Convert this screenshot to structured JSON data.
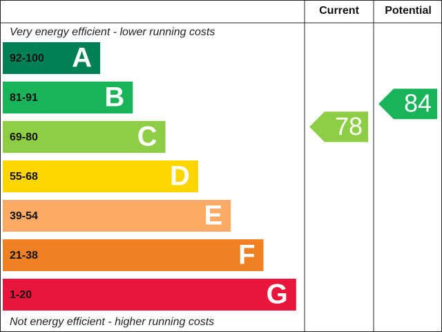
{
  "chart_data": {
    "type": "epc",
    "top_note": "Very energy efficient - lower running costs",
    "bottom_note": "Not energy efficient - higher running costs",
    "bands": [
      {
        "range": "92-100",
        "letter": "A",
        "color": "#008054"
      },
      {
        "range": "81-91",
        "letter": "B",
        "color": "#19b459"
      },
      {
        "range": "69-80",
        "letter": "C",
        "color": "#8dce46"
      },
      {
        "range": "55-68",
        "letter": "D",
        "color": "#ffd500"
      },
      {
        "range": "39-54",
        "letter": "E",
        "color": "#fcaa65"
      },
      {
        "range": "21-38",
        "letter": "F",
        "color": "#ef8023"
      },
      {
        "range": "1-20",
        "letter": "G",
        "color": "#e9153b"
      }
    ],
    "series": [
      {
        "name": "Current",
        "value": 78
      },
      {
        "name": "Potential",
        "value": 84
      }
    ]
  }
}
